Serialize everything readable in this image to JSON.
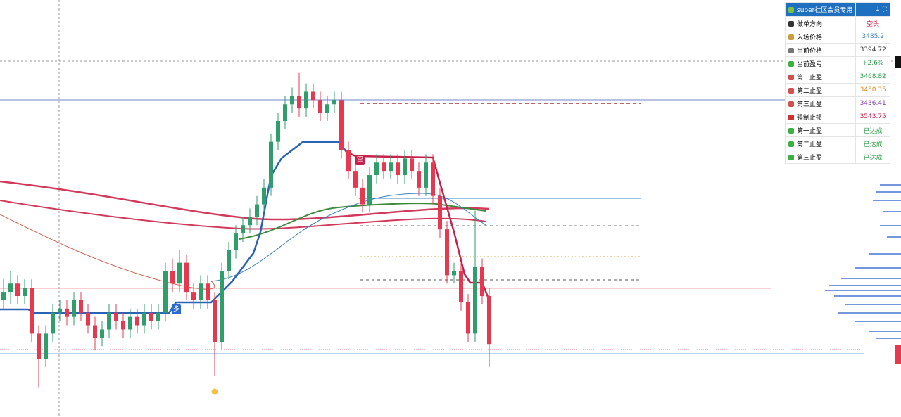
{
  "chart": {
    "ylim": [
      3360,
      3560
    ],
    "up_color": "#2e9e6a",
    "down_color": "#e8384f",
    "markers": [
      "空",
      "多"
    ],
    "candles": [
      [
        3416,
        3426,
        3412,
        3420
      ],
      [
        3420,
        3430,
        3414,
        3424
      ],
      [
        3424,
        3428,
        3414,
        3418
      ],
      [
        3418,
        3426,
        3414,
        3422
      ],
      [
        3422,
        3426,
        3396,
        3400
      ],
      [
        3400,
        3404,
        3374,
        3388
      ],
      [
        3388,
        3404,
        3384,
        3400
      ],
      [
        3400,
        3414,
        3396,
        3410
      ],
      [
        3410,
        3416,
        3406,
        3412
      ],
      [
        3412,
        3416,
        3404,
        3408
      ],
      [
        3408,
        3420,
        3404,
        3416
      ],
      [
        3416,
        3420,
        3406,
        3410
      ],
      [
        3410,
        3414,
        3400,
        3404
      ],
      [
        3404,
        3408,
        3392,
        3398
      ],
      [
        3398,
        3406,
        3394,
        3402
      ],
      [
        3402,
        3414,
        3398,
        3410
      ],
      [
        3410,
        3414,
        3402,
        3406
      ],
      [
        3406,
        3410,
        3398,
        3402
      ],
      [
        3402,
        3412,
        3398,
        3408
      ],
      [
        3408,
        3412,
        3400,
        3404
      ],
      [
        3404,
        3414,
        3400,
        3410
      ],
      [
        3410,
        3414,
        3402,
        3406
      ],
      [
        3406,
        3414,
        3402,
        3410
      ],
      [
        3410,
        3434,
        3406,
        3430
      ],
      [
        3430,
        3436,
        3420,
        3424
      ],
      [
        3424,
        3440,
        3420,
        3434
      ],
      [
        3434,
        3438,
        3416,
        3420
      ],
      [
        3420,
        3424,
        3412,
        3416
      ],
      [
        3416,
        3428,
        3412,
        3424
      ],
      [
        3424,
        3428,
        3412,
        3416
      ],
      [
        3416,
        3420,
        3380,
        3396
      ],
      [
        3396,
        3434,
        3392,
        3430
      ],
      [
        3430,
        3444,
        3426,
        3440
      ],
      [
        3440,
        3452,
        3436,
        3448
      ],
      [
        3448,
        3456,
        3444,
        3452
      ],
      [
        3452,
        3460,
        3448,
        3456
      ],
      [
        3456,
        3466,
        3452,
        3462
      ],
      [
        3462,
        3474,
        3458,
        3470
      ],
      [
        3470,
        3496,
        3466,
        3492
      ],
      [
        3492,
        3506,
        3488,
        3502
      ],
      [
        3502,
        3514,
        3498,
        3510
      ],
      [
        3510,
        3518,
        3506,
        3514
      ],
      [
        3514,
        3525,
        3504,
        3508
      ],
      [
        3508,
        3520,
        3504,
        3516
      ],
      [
        3516,
        3520,
        3508,
        3512
      ],
      [
        3512,
        3516,
        3502,
        3506
      ],
      [
        3506,
        3514,
        3502,
        3510
      ],
      [
        3510,
        3516,
        3506,
        3512
      ],
      [
        3512,
        3516,
        3484,
        3488
      ],
      [
        3488,
        3492,
        3474,
        3478
      ],
      [
        3478,
        3482,
        3466,
        3470
      ],
      [
        3470,
        3474,
        3458,
        3462
      ],
      [
        3462,
        3480,
        3458,
        3476
      ],
      [
        3476,
        3486,
        3472,
        3482
      ],
      [
        3482,
        3486,
        3474,
        3478
      ],
      [
        3478,
        3486,
        3474,
        3482
      ],
      [
        3482,
        3486,
        3472,
        3476
      ],
      [
        3476,
        3488,
        3472,
        3484
      ],
      [
        3484,
        3488,
        3474,
        3478
      ],
      [
        3478,
        3482,
        3466,
        3470
      ],
      [
        3470,
        3486,
        3466,
        3482
      ],
      [
        3482,
        3486,
        3462,
        3466
      ],
      [
        3466,
        3470,
        3446,
        3450
      ],
      [
        3450,
        3454,
        3424,
        3428
      ],
      [
        3428,
        3434,
        3424,
        3430
      ],
      [
        3430,
        3434,
        3411,
        3415
      ],
      [
        3415,
        3419,
        3396,
        3400
      ],
      [
        3400,
        3459,
        3396,
        3432
      ],
      [
        3432,
        3436,
        3414,
        3418
      ],
      [
        3418,
        3422,
        3384,
        3395
      ]
    ]
  },
  "panel": {
    "header": "super社区会员专用",
    "rows": [
      [
        "做单方向",
        "空头"
      ],
      [
        "入场价格",
        "3485.2"
      ],
      [
        "当前价格",
        "3394.72"
      ],
      [
        "当前盈亏",
        "+2.6%"
      ],
      [
        "第一止盈",
        "3468.82"
      ],
      [
        "第二止盈",
        "3450.35"
      ],
      [
        "第三止盈",
        "3436.41"
      ],
      [
        "强制止损",
        "3543.75"
      ],
      [
        "第一止盈",
        "已达成"
      ],
      [
        "第二止盈",
        "已达成"
      ],
      [
        "第三止盈",
        "已达成"
      ]
    ]
  }
}
